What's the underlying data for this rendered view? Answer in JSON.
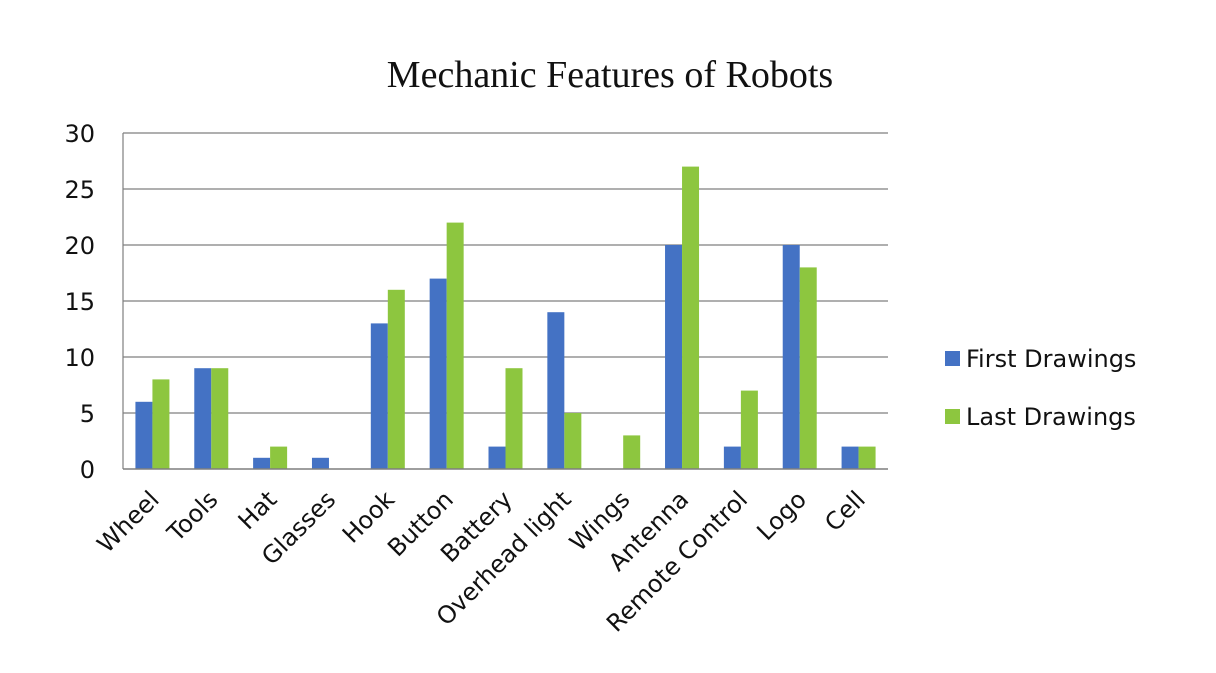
{
  "chart_data": {
    "type": "bar",
    "title": "Mechanic Features of Robots",
    "xlabel": "",
    "ylabel": "",
    "ylim": [
      0,
      30
    ],
    "yticks": [
      0,
      5,
      10,
      15,
      20,
      25,
      30
    ],
    "grid": true,
    "legend_position": "right",
    "categories": [
      "Wheel",
      "Tools",
      "Hat",
      "Glasses",
      "Hook",
      "Button",
      "Battery",
      "Overhead light",
      "Wings",
      "Antenna",
      "Remote Control",
      "Logo",
      "Cell"
    ],
    "series": [
      {
        "name": "First Drawings",
        "color": "#4472C4",
        "values": [
          6,
          9,
          1,
          1,
          13,
          17,
          2,
          14,
          0,
          20,
          2,
          20,
          2
        ]
      },
      {
        "name": "Last Drawings",
        "color": "#8DC63F",
        "values": [
          8,
          9,
          2,
          0,
          16,
          22,
          9,
          5,
          3,
          27,
          7,
          18,
          2
        ]
      }
    ]
  }
}
